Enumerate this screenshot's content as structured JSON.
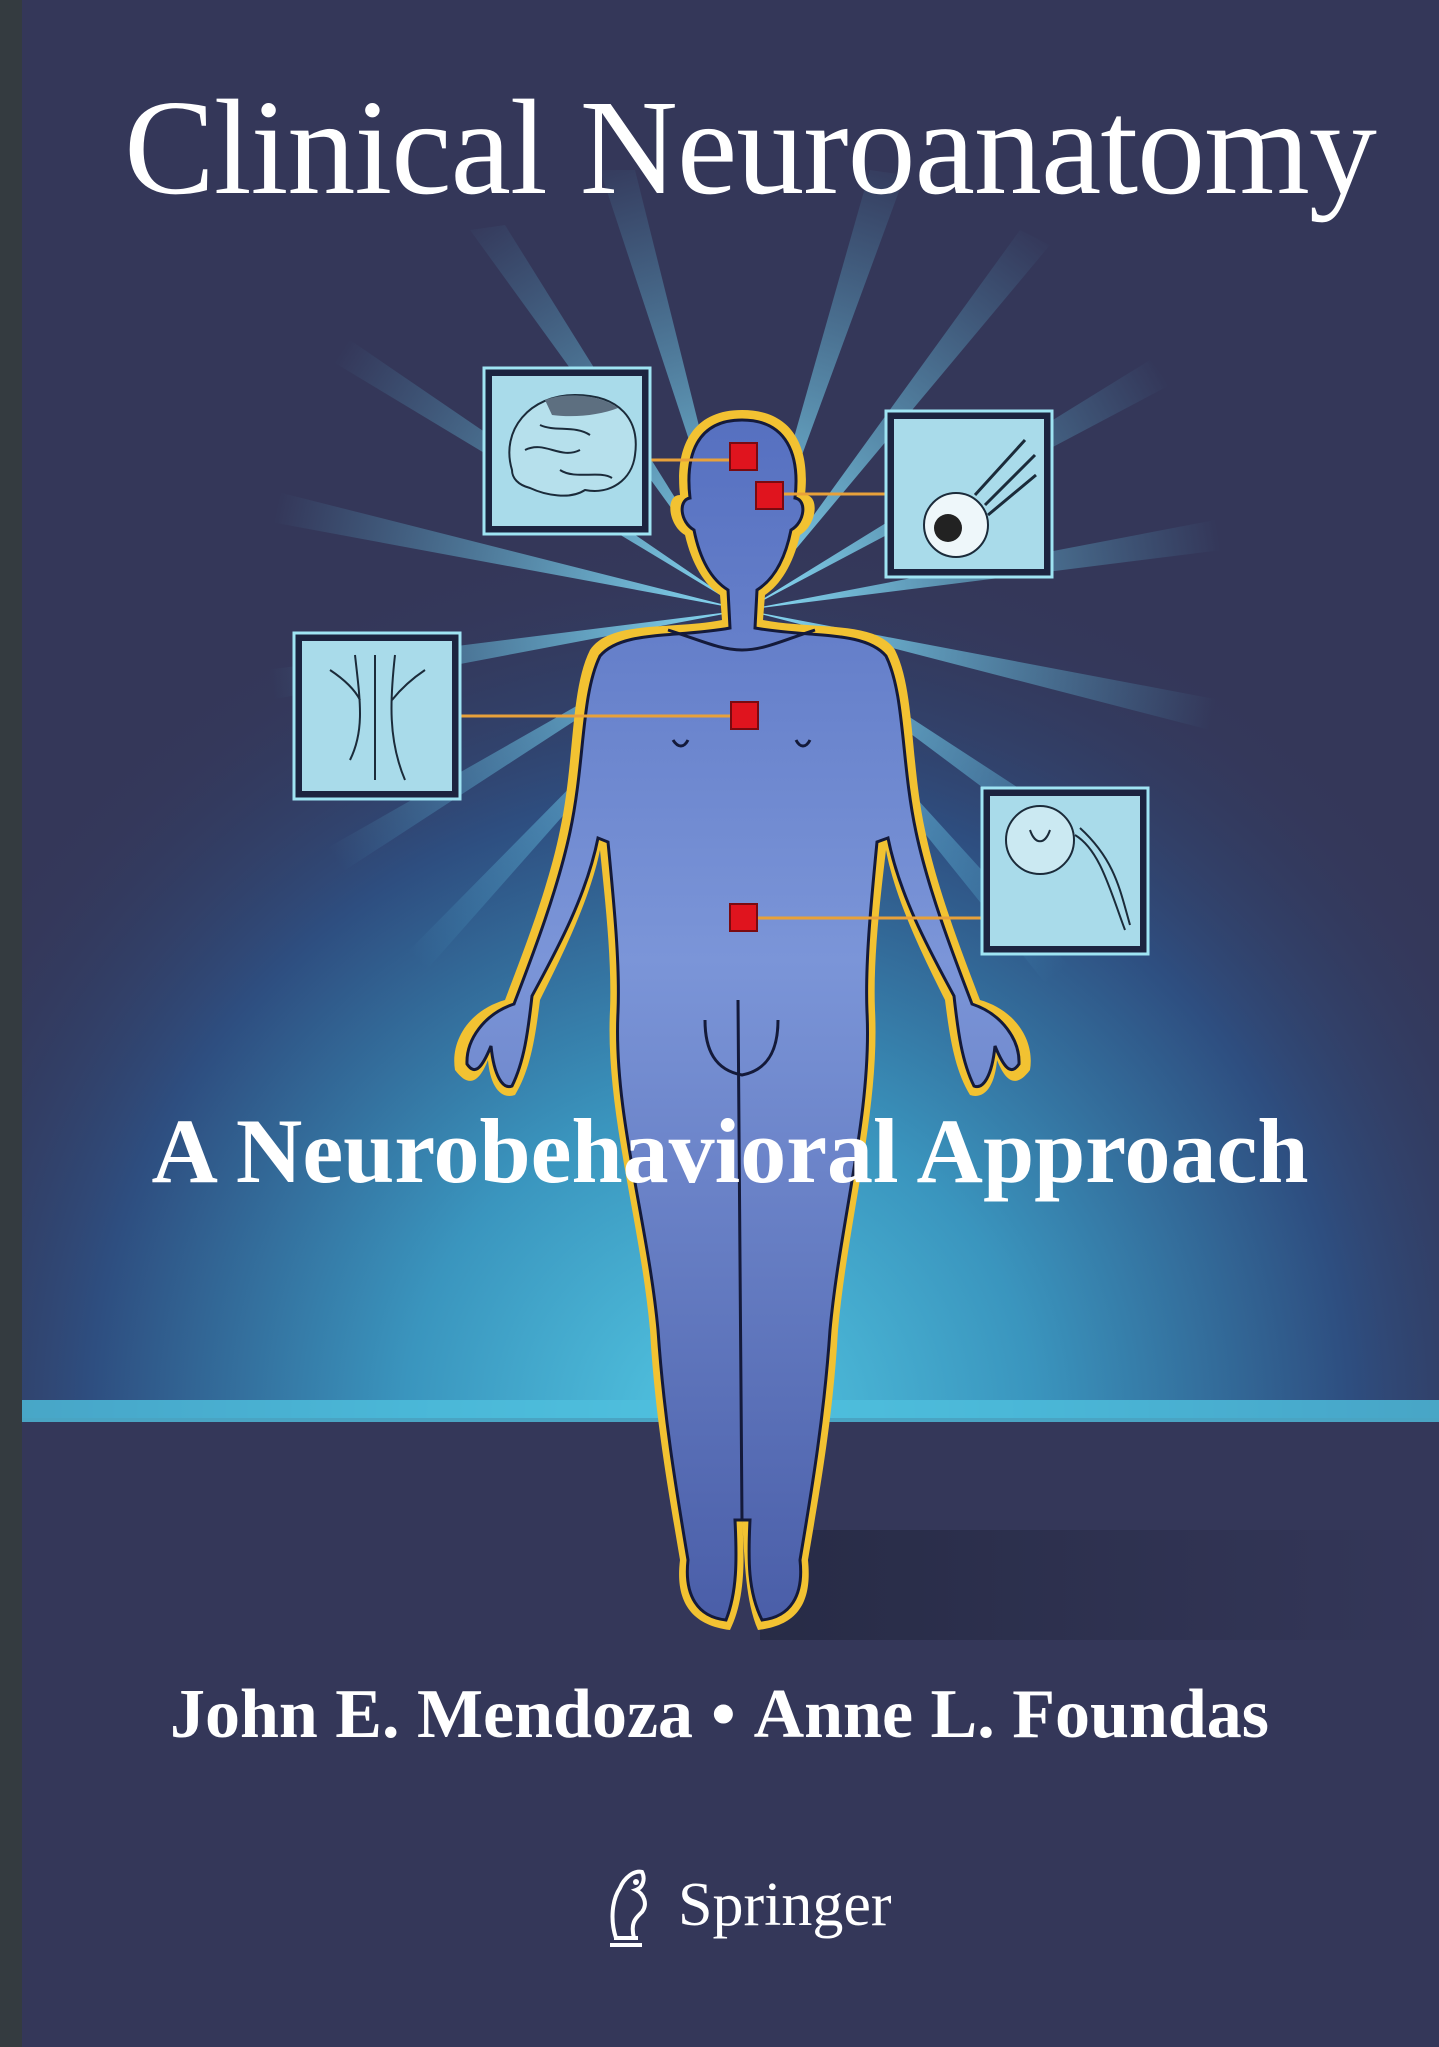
{
  "book": {
    "title": "Clinical Neuroanatomy",
    "subtitle": "A Neurobehavioral Approach",
    "authors": [
      "John E. Mendoza",
      "Anne L. Foundas"
    ],
    "author_separator": "•",
    "publisher": "Springer"
  },
  "illustration": {
    "insets": [
      "brain-icon",
      "eye-icon",
      "brainstem-icon",
      "spinal-cord-icon"
    ],
    "colors": {
      "background": "#343759",
      "glow": "#4fc0de",
      "body": "#5e7ac4",
      "outline": "#f2c232",
      "marker": "#e0141e",
      "inset": "#a9dbea",
      "connector": "#e8a13a"
    }
  }
}
